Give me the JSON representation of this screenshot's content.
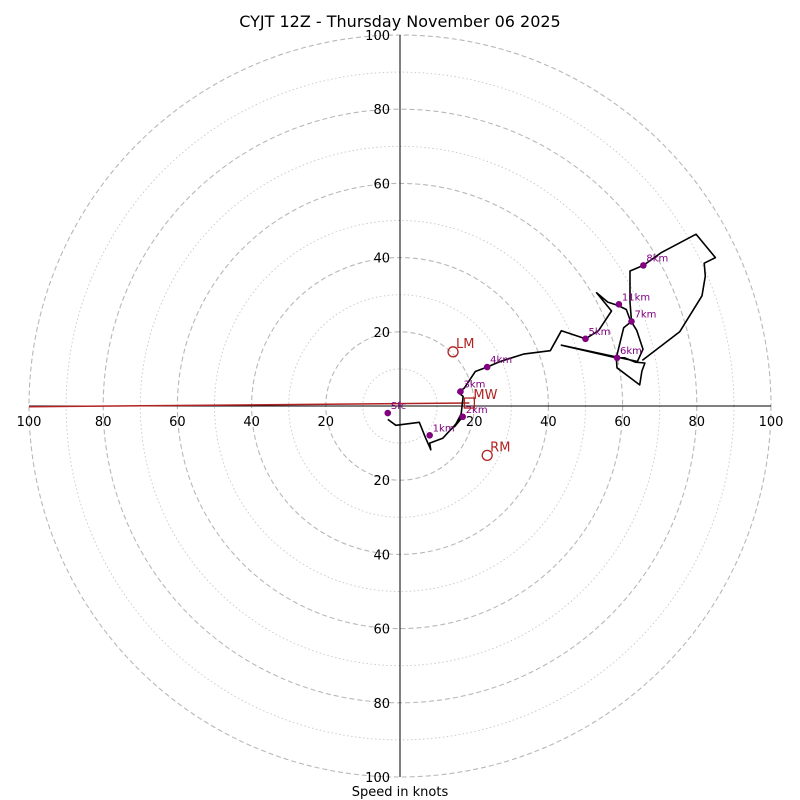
{
  "chart_data": {
    "type": "hodograph",
    "title": "CYJT 12Z - Thursday November 06 2025",
    "xlabel": "Speed in knots",
    "max_speed": 100,
    "ring_step_major": 20,
    "ring_step_minor": 10,
    "axis_ticks": [
      20,
      40,
      60,
      80,
      100
    ],
    "tick_labels": [
      "20",
      "40",
      "60",
      "80",
      "100"
    ],
    "colors": {
      "hodo": "#000000",
      "height_markers": "#800080",
      "motion": "#b22222",
      "grid_major": "#b8b8b8",
      "grid_minor": "#c8c8c8"
    },
    "hodograph_line": [
      [
        -3.3,
        -3.6
      ],
      [
        -1.1,
        -5.2
      ],
      [
        5.2,
        -4.4
      ],
      [
        6.9,
        -8.6
      ],
      [
        8.0,
        -11.1
      ],
      [
        8.3,
        -11.8
      ],
      [
        8.0,
        -10.0
      ],
      [
        11.5,
        -8.7
      ],
      [
        13.0,
        -7.1
      ],
      [
        14.5,
        -5.5
      ],
      [
        16.0,
        -3.7
      ],
      [
        17.3,
        -2.4
      ],
      [
        14.7,
        -5.6
      ],
      [
        16.5,
        -2.1
      ],
      [
        17.0,
        2.6
      ],
      [
        15.6,
        3.7
      ],
      [
        17.0,
        4.6
      ],
      [
        17.3,
        4.8
      ],
      [
        20.3,
        9.3
      ],
      [
        23.5,
        10.5
      ],
      [
        27.0,
        12.0
      ],
      [
        33.3,
        14.0
      ],
      [
        40.5,
        14.9
      ],
      [
        43.5,
        20.3
      ],
      [
        50.0,
        18.1
      ],
      [
        53.5,
        20.3
      ],
      [
        57.0,
        25.6
      ],
      [
        53.0,
        30.5
      ],
      [
        56.0,
        28.0
      ],
      [
        58.8,
        27.1
      ],
      [
        61.0,
        26.0
      ],
      [
        62.0,
        23.3
      ],
      [
        63.8,
        20.4
      ],
      [
        65.5,
        15.3
      ],
      [
        64.0,
        12.0
      ],
      [
        43.5,
        16.4
      ],
      [
        58.3,
        13.0
      ],
      [
        60.5,
        13.0
      ],
      [
        63.5,
        11.8
      ],
      [
        66.0,
        11.6
      ],
      [
        65.2,
        9.4
      ],
      [
        64.6,
        5.7
      ],
      [
        58.5,
        10.3
      ],
      [
        58.3,
        13.0
      ],
      [
        60.3,
        21.1
      ],
      [
        62.4,
        22.8
      ],
      [
        62.0,
        28.0
      ],
      [
        62.0,
        36.4
      ],
      [
        65.6,
        37.9
      ],
      [
        70.5,
        41.4
      ],
      [
        79.8,
        46.3
      ],
      [
        85.0,
        40.0
      ],
      [
        82.0,
        38.5
      ],
      [
        82.3,
        35.0
      ],
      [
        81.4,
        29.7
      ],
      [
        75.4,
        20.0
      ],
      [
        65.3,
        12.3
      ]
    ],
    "height_markers": [
      {
        "label": "Sfc",
        "u": -3.3,
        "v": -1.9
      },
      {
        "label": "1km",
        "u": 8.0,
        "v": -7.9
      },
      {
        "label": "2km",
        "u": 16.9,
        "v": -2.9
      },
      {
        "label": "3km",
        "u": 16.3,
        "v": 3.9
      },
      {
        "label": "4km",
        "u": 23.5,
        "v": 10.5
      },
      {
        "label": "5km",
        "u": 50.0,
        "v": 18.1
      },
      {
        "label": "6km",
        "u": 58.5,
        "v": 13.0
      },
      {
        "label": "7km",
        "u": 62.4,
        "v": 22.8
      },
      {
        "label": "8km",
        "u": 65.6,
        "v": 37.9
      },
      {
        "label": "11km",
        "u": 59.0,
        "v": 27.4
      }
    ],
    "mean_wind": {
      "label": "MW",
      "u": 18.7,
      "v": 0.8
    },
    "storm_motions": [
      {
        "label": "LM",
        "u": 14.3,
        "v": 14.6
      },
      {
        "label": "RM",
        "u": 23.5,
        "v": -13.3
      }
    ],
    "shear_vector": {
      "from": [
        -100.0,
        -0.2
      ],
      "to": [
        18.7,
        0.8
      ]
    }
  }
}
